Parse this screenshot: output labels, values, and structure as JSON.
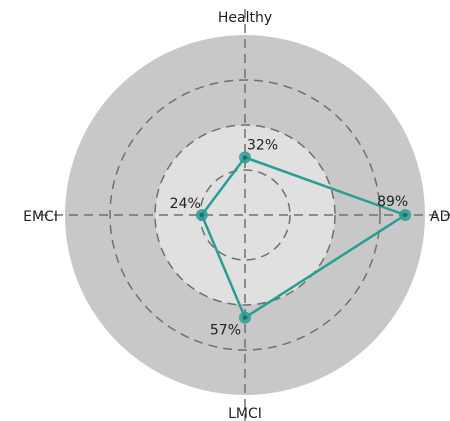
{
  "chart_data": {
    "type": "radar",
    "categories": [
      "Healthy",
      "AD",
      "LMCI",
      "EMCI"
    ],
    "series": [
      {
        "values": [
          32,
          89,
          57,
          24
        ],
        "labels": [
          "32%",
          "89%",
          "57%",
          "24%"
        ]
      }
    ],
    "rlim": [
      0,
      100
    ],
    "rings": [
      25,
      50,
      75
    ],
    "grid": true,
    "colors": {
      "series": "#2a9d94",
      "outer_band": "#c8c8c8",
      "inner_disc": "#e0e0e0",
      "grid": "#707070"
    }
  }
}
